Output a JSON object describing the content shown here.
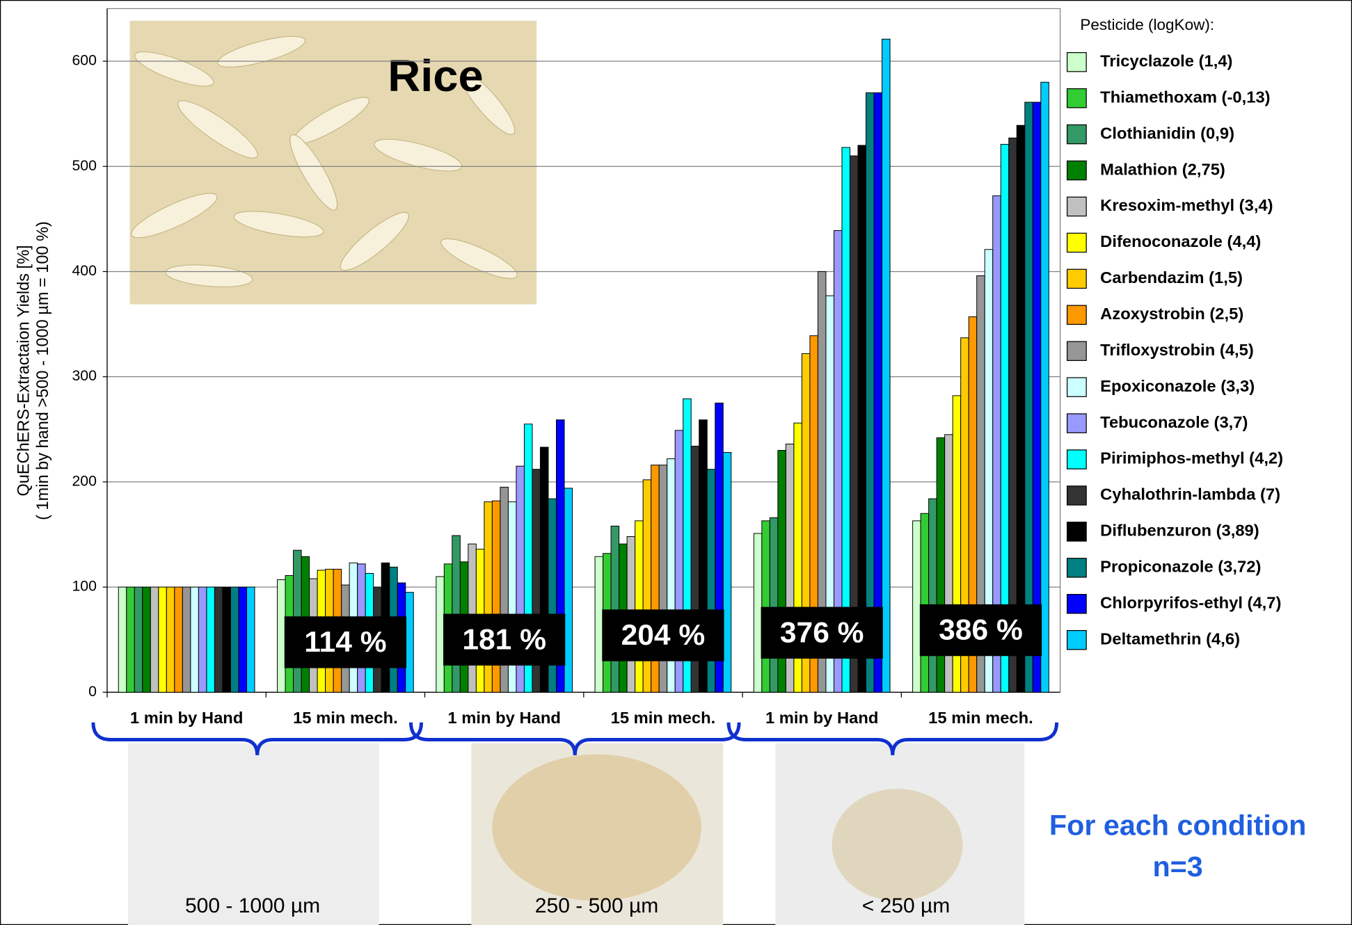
{
  "chart_data": {
    "type": "bar",
    "y_label": [
      "QuEChERS-Extractaion Yields [%]",
      "( 1min by hand >500 - 1000 µm = 100 %)"
    ],
    "categories": [
      "1 min by Hand",
      "15 min mech.",
      "1 min by Hand",
      "15 min mech.",
      "1 min by Hand",
      "15 min mech."
    ],
    "ylim": [
      0,
      650
    ],
    "yticks": [
      0,
      100,
      200,
      300,
      400,
      500,
      600
    ],
    "grid": true,
    "legend_title": "Pesticide (logKow):",
    "legend_position": "right",
    "series": [
      {
        "name": "Tricyclazole (1,4)",
        "color": "#ccffcc",
        "values": [
          100,
          107,
          110,
          129,
          151,
          163
        ]
      },
      {
        "name": "Thiamethoxam (-0,13)",
        "color": "#33cc33",
        "values": [
          100,
          111,
          122,
          132,
          163,
          170
        ]
      },
      {
        "name": "Clothianidin (0,9)",
        "color": "#339966",
        "values": [
          100,
          135,
          149,
          158,
          166,
          184
        ]
      },
      {
        "name": "Malathion (2,75)",
        "color": "#008000",
        "values": [
          100,
          129,
          124,
          141,
          230,
          242
        ]
      },
      {
        "name": "Kresoxim-methyl (3,4)",
        "color": "#c0c0c0",
        "values": [
          100,
          108,
          141,
          148,
          236,
          245
        ]
      },
      {
        "name": "Difenoconazole (4,4)",
        "color": "#ffff00",
        "values": [
          100,
          116,
          136,
          163,
          256,
          282
        ]
      },
      {
        "name": "Carbendazim (1,5)",
        "color": "#ffcc00",
        "values": [
          100,
          117,
          181,
          202,
          322,
          337
        ]
      },
      {
        "name": "Azoxystrobin (2,5)",
        "color": "#ff9900",
        "values": [
          100,
          117,
          182,
          216,
          339,
          357
        ]
      },
      {
        "name": "Trifloxystrobin (4,5)",
        "color": "#969696",
        "values": [
          100,
          102,
          195,
          216,
          400,
          396
        ]
      },
      {
        "name": "Epoxiconazole (3,3)",
        "color": "#ccffff",
        "values": [
          100,
          123,
          181,
          222,
          377,
          421
        ]
      },
      {
        "name": "Tebuconazole (3,7)",
        "color": "#9999ff",
        "values": [
          100,
          122,
          215,
          249,
          439,
          472
        ]
      },
      {
        "name": "Pirimiphos-methyl (4,2)",
        "color": "#00ffff",
        "values": [
          100,
          113,
          255,
          279,
          518,
          521
        ]
      },
      {
        "name": "Cyhalothrin-lambda (7)",
        "color": "#333333",
        "values": [
          100,
          100,
          212,
          234,
          510,
          527
        ]
      },
      {
        "name": "Diflubenzuron (3,89)",
        "color": "#000000",
        "values": [
          100,
          123,
          233,
          259,
          520,
          539
        ]
      },
      {
        "name": "Propiconazole (3,72)",
        "color": "#008080",
        "values": [
          100,
          119,
          184,
          212,
          570,
          561
        ]
      },
      {
        "name": "Chlorpyrifos-ethyl (4,7)",
        "color": "#0000ff",
        "values": [
          100,
          104,
          259,
          275,
          570,
          561
        ]
      },
      {
        "name": "Deltamethrin (4,6)",
        "color": "#00ccff",
        "values": [
          100,
          95,
          194,
          228,
          621,
          580
        ]
      }
    ],
    "group_yields": [
      null,
      "114 %",
      "181 %",
      "204 %",
      "376 %",
      "386 %"
    ],
    "inset_title": "Rice",
    "fractions": [
      "500 - 1000 µm",
      "250 - 500 µm",
      "< 250 µm"
    ],
    "note": [
      "For each condition",
      "n=3"
    ]
  }
}
